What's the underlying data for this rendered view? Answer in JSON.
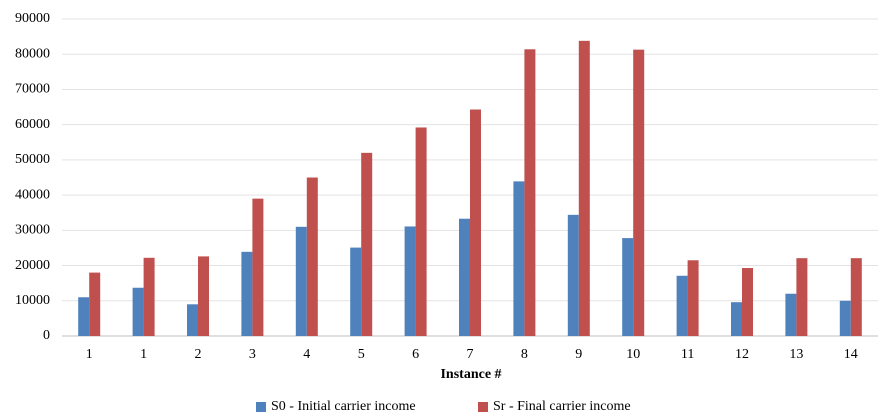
{
  "chart_data": {
    "type": "bar",
    "x_label": "Instance #",
    "categories": [
      "1",
      "1",
      "2",
      "3",
      "4",
      "5",
      "6",
      "7",
      "8",
      "9",
      "10",
      "11",
      "12",
      "13",
      "14"
    ],
    "series": [
      {
        "name": "S0 - Initial carrier income",
        "color": "#4f81bd",
        "values": [
          11000,
          13700,
          9000,
          23900,
          31000,
          25100,
          31100,
          33300,
          43900,
          34400,
          27800,
          17100,
          9600,
          12000,
          10000
        ]
      },
      {
        "name": "Sr - Final carrier income",
        "color": "#c0504d",
        "values": [
          18000,
          22200,
          22600,
          39000,
          45000,
          52000,
          59200,
          64300,
          81400,
          83800,
          81300,
          21500,
          19300,
          22100,
          22100
        ]
      }
    ],
    "ylim": [
      0,
      90000
    ],
    "yticks": [
      0,
      10000,
      20000,
      30000,
      40000,
      50000,
      60000,
      70000,
      80000,
      90000
    ],
    "grid": true,
    "legend": "bottom"
  }
}
